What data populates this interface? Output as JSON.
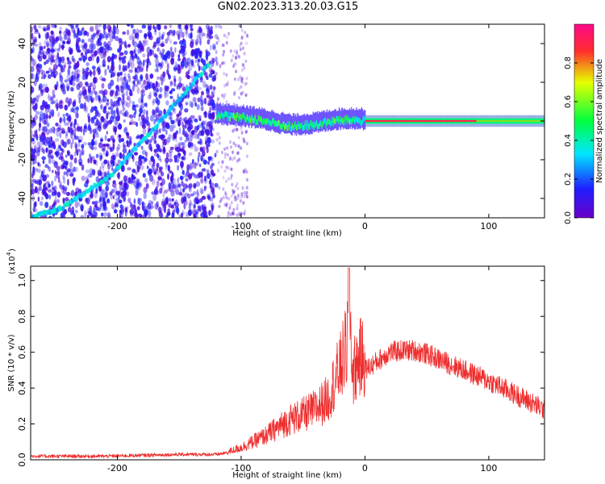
{
  "figure": {
    "title": "GN02.2023.313.20.03.G15"
  },
  "chart_data": [
    {
      "type": "heatmap",
      "title": "GN02.2023.313.20.03.G15",
      "xlabel": "Height of straight line (km)",
      "ylabel": "Frequency (Hz)",
      "xlim": [
        -270,
        145
      ],
      "ylim": [
        -50,
        50
      ],
      "x_ticks": [
        -200,
        -100,
        0,
        100
      ],
      "y_ticks": [
        -40,
        -20,
        0,
        20,
        40
      ],
      "colorbar": {
        "label": "Normalized spectral amplitude",
        "range": [
          0.0,
          1.0
        ],
        "ticks": [
          "0.0",
          "0.2",
          "0.4",
          "0.6",
          "0.8"
        ],
        "colormap": [
          "#6a00c8",
          "#1f1fff",
          "#00e6ff",
          "#00ff40",
          "#e6ff00",
          "#ff2d2d",
          "#ff0a8a"
        ]
      },
      "features": [
        {
          "kind": "noise",
          "x_range": [
            -270,
            -120
          ],
          "y_range": [
            -50,
            50
          ],
          "amplitude": 0.1
        },
        {
          "kind": "line",
          "x": [
            -270,
            -245,
            -205,
            -165,
            -125
          ],
          "y": [
            -50,
            -45,
            -28,
            0,
            30
          ],
          "amplitude": 0.25
        },
        {
          "kind": "band",
          "x": [
            -120,
            -90,
            -60,
            -40,
            -25,
            -10,
            0,
            145
          ],
          "y": [
            3,
            1,
            -3,
            -2,
            0,
            0.5,
            0,
            0
          ],
          "amplitude": 0.9
        }
      ]
    },
    {
      "type": "line",
      "xlabel": "Height of straight line (km)",
      "ylabel": "SNR (10 * v/v)",
      "y_multiplier": "(x10",
      "y_multiplier_exp": "4",
      "xlim": [
        -270,
        145
      ],
      "ylim": [
        0,
        1.08
      ],
      "x_ticks": [
        -200,
        -100,
        0,
        100
      ],
      "y_ticks": [
        "0.0",
        "0.2",
        "0.4",
        "0.6",
        "0.8",
        "1.0"
      ],
      "color": "#ee2d2d",
      "series": [
        {
          "x": [
            -270,
            -240,
            -210,
            -180,
            -150,
            -120,
            -110,
            -100,
            -90,
            -80,
            -70,
            -60,
            -50,
            -40,
            -30,
            -25,
            -20,
            -15,
            -12,
            -10,
            -5,
            0,
            10,
            20,
            30,
            40,
            50,
            60,
            80,
            100,
            120,
            145
          ],
          "values": [
            0.02,
            0.02,
            0.02,
            0.025,
            0.03,
            0.03,
            0.04,
            0.06,
            0.09,
            0.12,
            0.16,
            0.2,
            0.22,
            0.25,
            0.3,
            0.38,
            0.45,
            0.55,
            0.7,
            0.42,
            0.5,
            0.5,
            0.55,
            0.6,
            0.61,
            0.61,
            0.59,
            0.56,
            0.5,
            0.44,
            0.37,
            0.28
          ]
        }
      ]
    }
  ]
}
